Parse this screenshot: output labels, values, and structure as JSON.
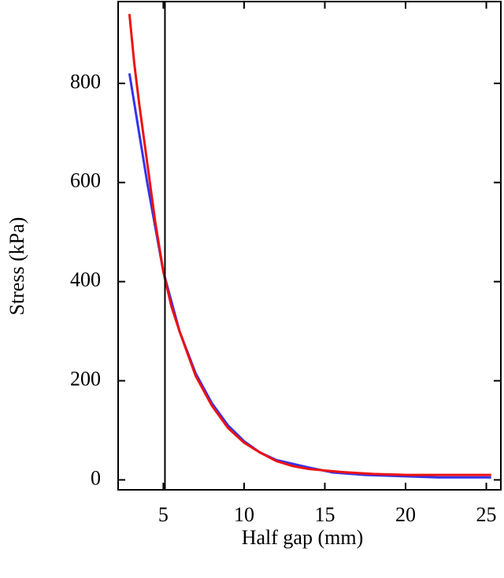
{
  "chart_data": {
    "type": "line",
    "xlabel": "Half gap (mm)",
    "ylabel": "Stress (kPa)",
    "xlim": [
      2.2,
      25.9
    ],
    "ylim": [
      -20,
      965
    ],
    "xticks": [
      5,
      10,
      15,
      20,
      25
    ],
    "yticks": [
      0,
      200,
      400,
      600,
      800
    ],
    "vline": 5.1,
    "vline_color": "#000000",
    "series": [
      {
        "color": "#3333ee",
        "x": [
          2.9,
          3.5,
          4.0,
          4.5,
          5.0,
          6.0,
          7.0,
          8.0,
          9.0,
          10.0,
          11.0,
          12.0,
          14.0,
          15.5,
          17.5,
          22.0,
          25.3
        ],
        "values": [
          820,
          700,
          600,
          510,
          420,
          300,
          215,
          155,
          110,
          78,
          55,
          40,
          25,
          15,
          10,
          5,
          5
        ]
      },
      {
        "color": "#ee1111",
        "x": [
          2.9,
          3.2,
          3.5,
          4.0,
          4.5,
          5.0,
          5.5,
          6.0,
          7.0,
          8.0,
          9.0,
          10.0,
          11.0,
          12.0,
          13.0,
          14.0,
          16.0,
          18.0,
          20.0,
          22.0,
          25.3
        ],
        "values": [
          940,
          840,
          760,
          640,
          520,
          420,
          350,
          300,
          210,
          150,
          105,
          75,
          55,
          38,
          28,
          22,
          16,
          12,
          10,
          10,
          10
        ]
      }
    ]
  }
}
